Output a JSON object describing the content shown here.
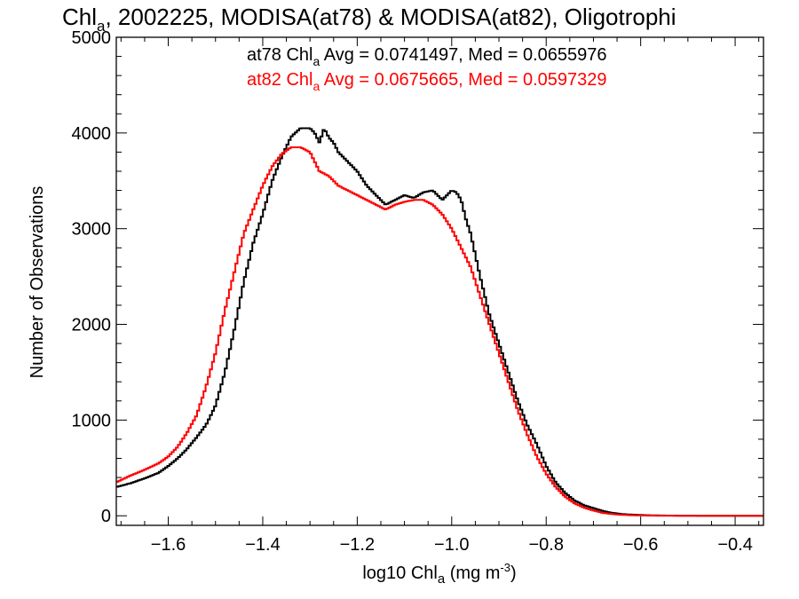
{
  "chart_data": {
    "type": "line",
    "title": {
      "pre": "Chl",
      "sub": "a",
      "post": ", 2002225, MODISA(at78) & MODISA(at82), Oligotrophi"
    },
    "xlabel": {
      "pre": "log10 Chl",
      "sub": "a",
      "mid": " (mg m",
      "sup": "-3",
      "post": ")"
    },
    "ylabel": "Number of Observations",
    "xlim": [
      -1.71,
      -0.34
    ],
    "ylim": [
      -100,
      5000
    ],
    "xticks": [
      -1.6,
      -1.4,
      -1.2,
      -1.0,
      -0.8,
      -0.6,
      -0.4
    ],
    "xtick_labels": [
      "−1.6",
      "−1.4",
      "−1.2",
      "−1.0",
      "−0.8",
      "−0.6",
      "−0.4"
    ],
    "yticks": [
      0,
      1000,
      2000,
      3000,
      4000,
      5000
    ],
    "ytick_labels": [
      "0",
      "1000",
      "2000",
      "3000",
      "4000",
      "5000"
    ],
    "grid": false,
    "step": true,
    "legend_position": "top-right",
    "series": [
      {
        "color": "#000000",
        "legend": {
          "pre": "at78 Chl",
          "sub": "a",
          "post": " Avg = 0.0741497, Med = 0.0655976"
        },
        "x": [
          -1.71,
          -1.68,
          -1.65,
          -1.62,
          -1.6,
          -1.58,
          -1.56,
          -1.54,
          -1.52,
          -1.5,
          -1.48,
          -1.46,
          -1.44,
          -1.42,
          -1.4,
          -1.38,
          -1.36,
          -1.34,
          -1.32,
          -1.3,
          -1.29,
          -1.28,
          -1.27,
          -1.26,
          -1.25,
          -1.24,
          -1.22,
          -1.2,
          -1.18,
          -1.16,
          -1.14,
          -1.12,
          -1.1,
          -1.08,
          -1.06,
          -1.04,
          -1.02,
          -1.0,
          -0.99,
          -0.98,
          -0.97,
          -0.96,
          -0.94,
          -0.92,
          -0.9,
          -0.88,
          -0.86,
          -0.84,
          -0.82,
          -0.8,
          -0.78,
          -0.76,
          -0.74,
          -0.72,
          -0.7,
          -0.68,
          -0.66,
          -0.64,
          -0.62,
          -0.6,
          -0.58,
          -0.56,
          -0.54,
          -0.5,
          -0.45,
          -0.4,
          -0.34
        ],
        "y": [
          300,
          340,
          390,
          450,
          520,
          600,
          700,
          820,
          950,
          1150,
          1500,
          1950,
          2450,
          2850,
          3150,
          3500,
          3750,
          3960,
          4050,
          4050,
          4000,
          3900,
          4050,
          3950,
          3900,
          3800,
          3700,
          3600,
          3450,
          3350,
          3250,
          3300,
          3350,
          3320,
          3380,
          3400,
          3300,
          3400,
          3380,
          3300,
          3100,
          2950,
          2500,
          2100,
          1800,
          1500,
          1200,
          950,
          750,
          520,
          350,
          240,
          160,
          110,
          80,
          50,
          30,
          18,
          12,
          8,
          5,
          3,
          2,
          1,
          0,
          0,
          0
        ]
      },
      {
        "color": "#ff0000",
        "legend": {
          "pre": "at82 Chl",
          "sub": "a",
          "post": " Avg = 0.0675665, Med = 0.0597329"
        },
        "x": [
          -1.71,
          -1.68,
          -1.65,
          -1.62,
          -1.6,
          -1.58,
          -1.56,
          -1.54,
          -1.52,
          -1.5,
          -1.48,
          -1.46,
          -1.44,
          -1.42,
          -1.4,
          -1.38,
          -1.36,
          -1.34,
          -1.32,
          -1.3,
          -1.29,
          -1.28,
          -1.26,
          -1.24,
          -1.22,
          -1.2,
          -1.18,
          -1.16,
          -1.14,
          -1.12,
          -1.1,
          -1.08,
          -1.06,
          -1.04,
          -1.02,
          -1.0,
          -0.98,
          -0.96,
          -0.94,
          -0.92,
          -0.9,
          -0.88,
          -0.86,
          -0.84,
          -0.82,
          -0.8,
          -0.78,
          -0.76,
          -0.74,
          -0.72,
          -0.7,
          -0.68,
          -0.66,
          -0.64,
          -0.62,
          -0.6,
          -0.58,
          -0.55,
          -0.5,
          -0.45,
          -0.4,
          -0.34
        ],
        "y": [
          350,
          420,
          480,
          550,
          620,
          720,
          870,
          1050,
          1350,
          1700,
          2150,
          2550,
          2950,
          3200,
          3450,
          3650,
          3780,
          3850,
          3850,
          3800,
          3700,
          3600,
          3550,
          3450,
          3400,
          3350,
          3300,
          3250,
          3200,
          3250,
          3280,
          3300,
          3300,
          3250,
          3150,
          3000,
          2800,
          2600,
          2300,
          2000,
          1700,
          1400,
          1100,
          850,
          620,
          440,
          300,
          200,
          130,
          85,
          55,
          30,
          18,
          10,
          6,
          4,
          2,
          1,
          0,
          0,
          0,
          0
        ]
      }
    ]
  }
}
